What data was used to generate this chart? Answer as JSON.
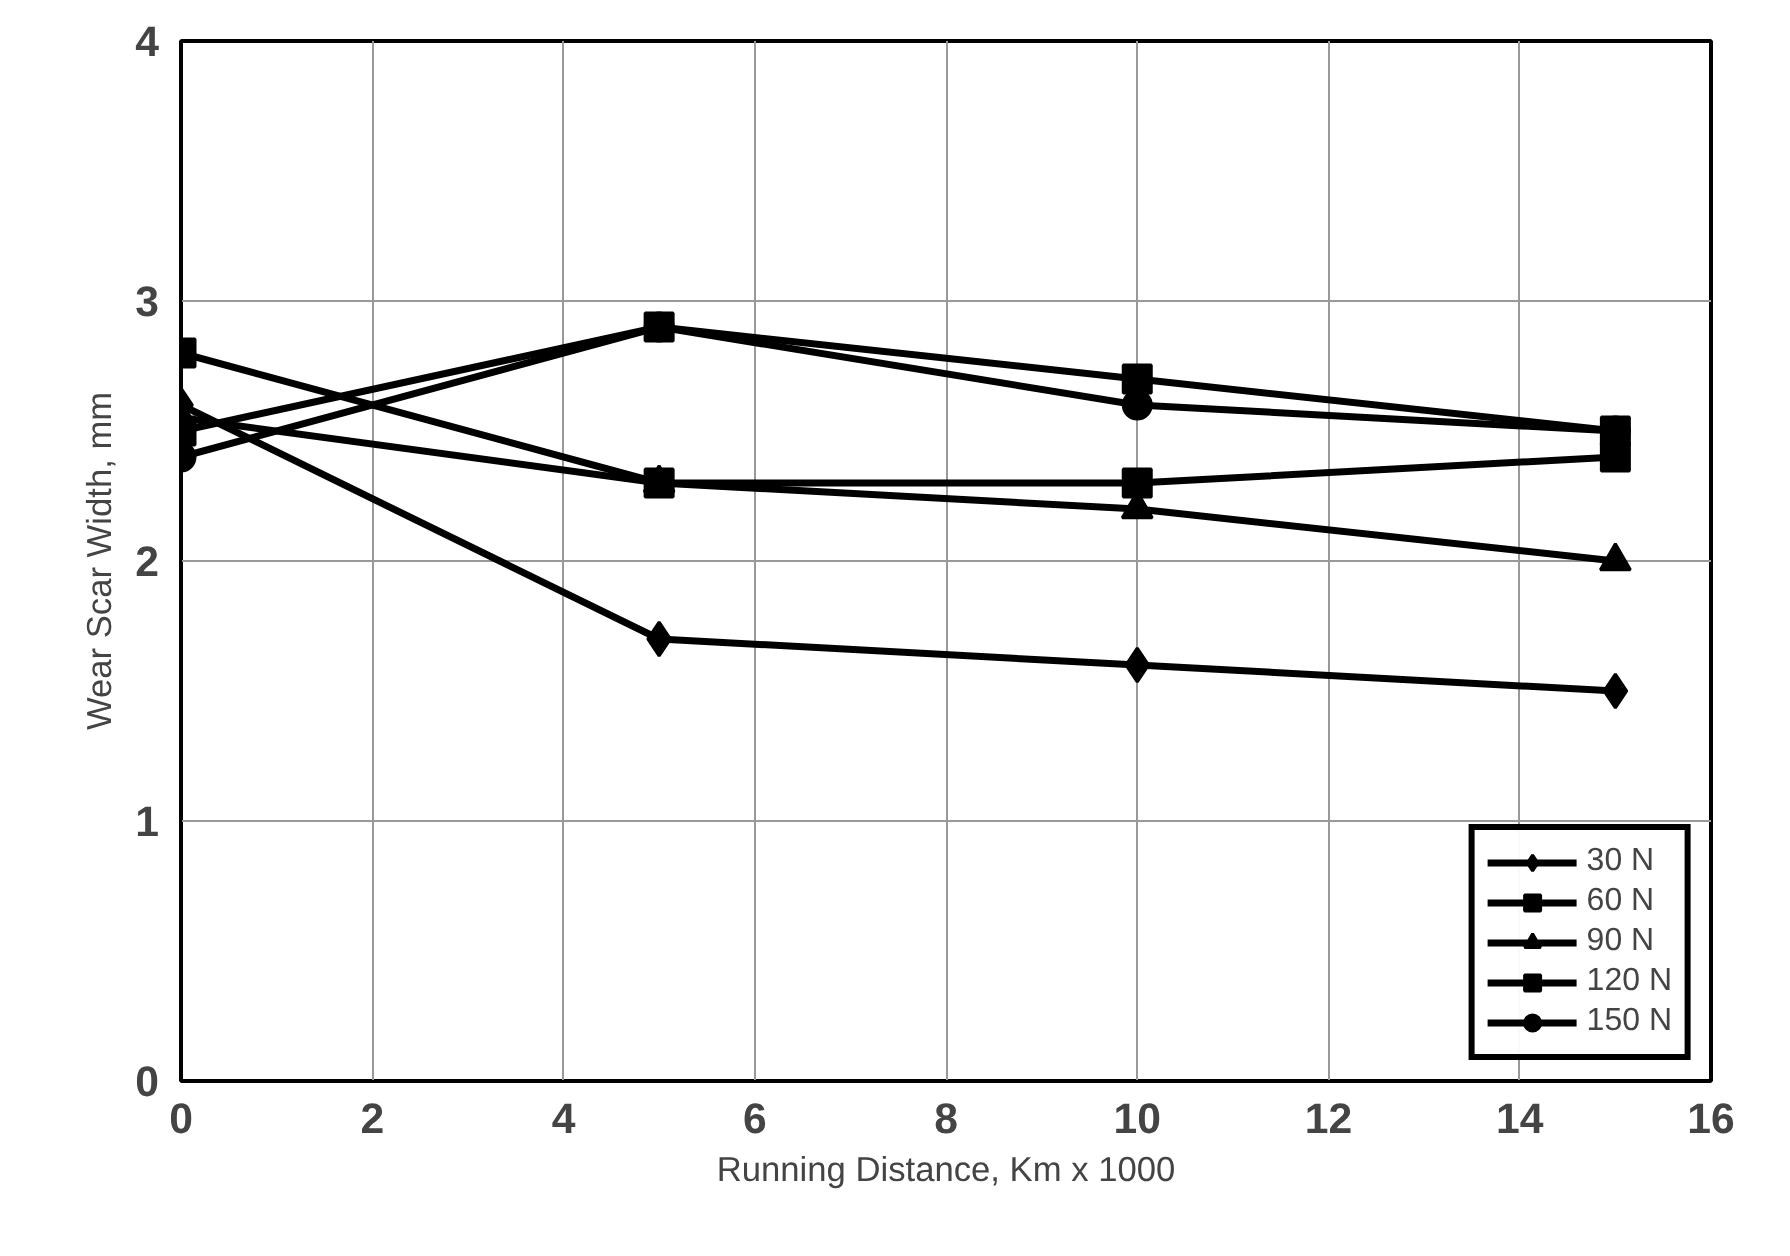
{
  "chart_data": {
    "type": "line",
    "xlabel": "Running Distance, Km x 1000",
    "ylabel": "Wear Scar Width, mm",
    "x": [
      0,
      5,
      10,
      15
    ],
    "xlim": [
      0,
      16
    ],
    "xticks": [
      0,
      2,
      4,
      6,
      8,
      10,
      12,
      14,
      16
    ],
    "ylim": [
      0,
      4
    ],
    "yticks": [
      0,
      1,
      2,
      3,
      4
    ],
    "grid": true,
    "legend": "bottom right",
    "line_style": "solid",
    "series": [
      {
        "name": "30 N",
        "color": "#000000",
        "marker": "diamond",
        "values": [
          2.6,
          1.7,
          1.6,
          1.5
        ]
      },
      {
        "name": "60 N",
        "color": "#000000",
        "marker": "square",
        "values": [
          2.8,
          2.3,
          2.3,
          2.4
        ]
      },
      {
        "name": "90 N",
        "color": "#000000",
        "marker": "triangle",
        "values": [
          2.55,
          2.3,
          2.2,
          2.0
        ]
      },
      {
        "name": "120 N",
        "color": "#000000",
        "marker": "square",
        "values": [
          2.5,
          2.9,
          2.7,
          2.5
        ]
      },
      {
        "name": "150 N",
        "color": "#000000",
        "marker": "circle",
        "values": [
          2.4,
          2.9,
          2.6,
          2.5
        ]
      }
    ]
  }
}
